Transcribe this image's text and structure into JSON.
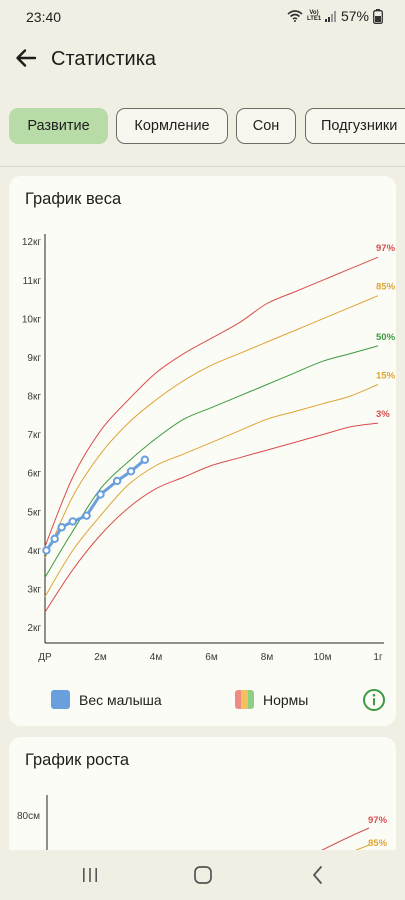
{
  "status_bar": {
    "time": "23:40",
    "network": "Vo) LTE1",
    "battery_percent": "57%",
    "icons": [
      "wifi-icon",
      "signal-icon",
      "battery-icon"
    ]
  },
  "app_bar": {
    "title": "Статистика",
    "back_icon": "arrow-left-icon"
  },
  "tabs": [
    {
      "label": "Развитие",
      "active": true
    },
    {
      "label": "Кормление",
      "active": false
    },
    {
      "label": "Сон",
      "active": false
    },
    {
      "label": "Подгузники",
      "active": false
    }
  ],
  "weight_card": {
    "title": "График веса",
    "legend": {
      "baby_label": "Вес малыша",
      "norms_label": "Нормы",
      "info_icon": "info-icon"
    }
  },
  "height_card": {
    "title": "График роста",
    "y_tick": "80см",
    "percentile_labels": [
      "97%",
      "85%"
    ]
  },
  "colors": {
    "accent_green": "#b8dca8",
    "baby_line": "#6a9fdd",
    "p97": "#d84e4e",
    "p85": "#dea437",
    "p50": "#3d9a42",
    "p15": "#dea437",
    "p3": "#d84e4e",
    "legend_norms": [
      "#ee8b82",
      "#f2c15e",
      "#8fcf85"
    ]
  },
  "chart_data": {
    "type": "line",
    "x_tick_labels": [
      "ДР",
      "2м",
      "4м",
      "6м",
      "8м",
      "10м",
      "1г"
    ],
    "x_ticks_months": [
      0,
      2,
      4,
      6,
      8,
      10,
      12
    ],
    "y_tick_labels": [
      "2кг",
      "3кг",
      "4кг",
      "5кг",
      "6кг",
      "7кг",
      "8кг",
      "9кг",
      "10кг",
      "11кг",
      "12кг"
    ],
    "y_ticks_kg": [
      2,
      3,
      4,
      5,
      6,
      7,
      8,
      9,
      10,
      11,
      12
    ],
    "xlim": [
      0,
      12
    ],
    "ylim": [
      1.6,
      12.2
    ],
    "x": [
      0,
      1,
      2,
      3,
      4,
      5,
      6,
      7,
      8,
      9,
      10,
      11,
      12
    ],
    "percentiles": [
      {
        "name": "97%",
        "color": "#d84e4e",
        "values": [
          4.1,
          5.9,
          7.1,
          7.9,
          8.6,
          9.1,
          9.5,
          9.9,
          10.4,
          10.7,
          11.0,
          11.3,
          11.6
        ]
      },
      {
        "name": "85%",
        "color": "#dea437",
        "values": [
          3.8,
          5.4,
          6.5,
          7.3,
          7.9,
          8.4,
          8.8,
          9.1,
          9.4,
          9.7,
          10.0,
          10.3,
          10.6
        ]
      },
      {
        "name": "50%",
        "color": "#3d9a42",
        "values": [
          3.3,
          4.5,
          5.6,
          6.3,
          6.9,
          7.4,
          7.7,
          8.0,
          8.3,
          8.6,
          8.9,
          9.1,
          9.3
        ]
      },
      {
        "name": "15%",
        "color": "#dea437",
        "values": [
          2.8,
          4.0,
          4.9,
          5.7,
          6.2,
          6.5,
          6.8,
          7.1,
          7.4,
          7.6,
          7.8,
          8.0,
          8.3
        ]
      },
      {
        "name": "3%",
        "color": "#d84e4e",
        "values": [
          2.4,
          3.5,
          4.4,
          5.1,
          5.6,
          5.9,
          6.2,
          6.4,
          6.6,
          6.8,
          7.0,
          7.2,
          7.3
        ]
      }
    ],
    "series": [
      {
        "name": "Вес малыша",
        "color": "#6a9fdd",
        "x": [
          0.05,
          0.35,
          0.6,
          1.0,
          1.5,
          2.0,
          2.6,
          3.1,
          3.6
        ],
        "values": [
          4.0,
          4.3,
          4.6,
          4.75,
          4.9,
          5.45,
          5.8,
          6.05,
          6.35
        ]
      }
    ]
  }
}
